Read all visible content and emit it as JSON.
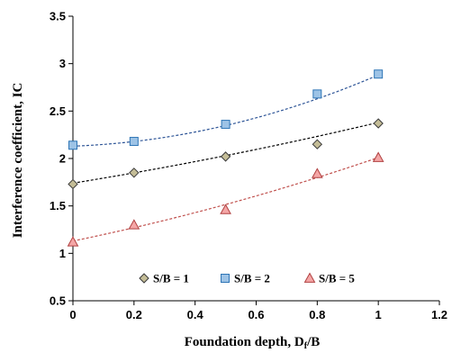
{
  "chart_data": {
    "type": "scatter",
    "title": "",
    "xlabel": "Foundation depth, D",
    "xlabel_subscript": "f",
    "xlabel_suffix": "/B",
    "ylabel": "Interference coefficient, IC",
    "xlim": [
      0,
      1.2
    ],
    "ylim": [
      0.5,
      3.5
    ],
    "x_ticks": [
      "0",
      "0.2",
      "0.4",
      "0.6",
      "0.8",
      "1",
      "1.2"
    ],
    "y_ticks": [
      "0.5",
      "1",
      "1.5",
      "2",
      "2.5",
      "3",
      "3.5"
    ],
    "grid": false,
    "legend_position": "bottom-center",
    "series": [
      {
        "name": "S/B = 1",
        "marker": "diamond",
        "fill": "#c4bd97",
        "stroke": "#3a3a3a",
        "trend_color": "#000000",
        "x": [
          0,
          0.2,
          0.5,
          0.8,
          1
        ],
        "y": [
          1.73,
          1.85,
          2.02,
          2.15,
          2.37
        ],
        "trend": [
          1.74,
          0.52,
          0.12
        ]
      },
      {
        "name": "S/B = 2",
        "marker": "square",
        "fill": "#9dc3e6",
        "stroke": "#2e75b6",
        "trend_color": "#2e5597",
        "x": [
          0,
          0.2,
          0.5,
          0.8,
          1
        ],
        "y": [
          2.14,
          2.18,
          2.36,
          2.68,
          2.89
        ],
        "trend": [
          2.13,
          0.12,
          0.63
        ]
      },
      {
        "name": "S/B = 5",
        "marker": "triangle",
        "fill": "#f4a6a6",
        "stroke": "#b04040",
        "trend_color": "#c0504d",
        "x": [
          0,
          0.2,
          0.5,
          0.8,
          1
        ],
        "y": [
          1.12,
          1.3,
          1.46,
          1.84,
          2.01
        ],
        "trend": [
          1.13,
          0.66,
          0.22
        ]
      }
    ]
  }
}
